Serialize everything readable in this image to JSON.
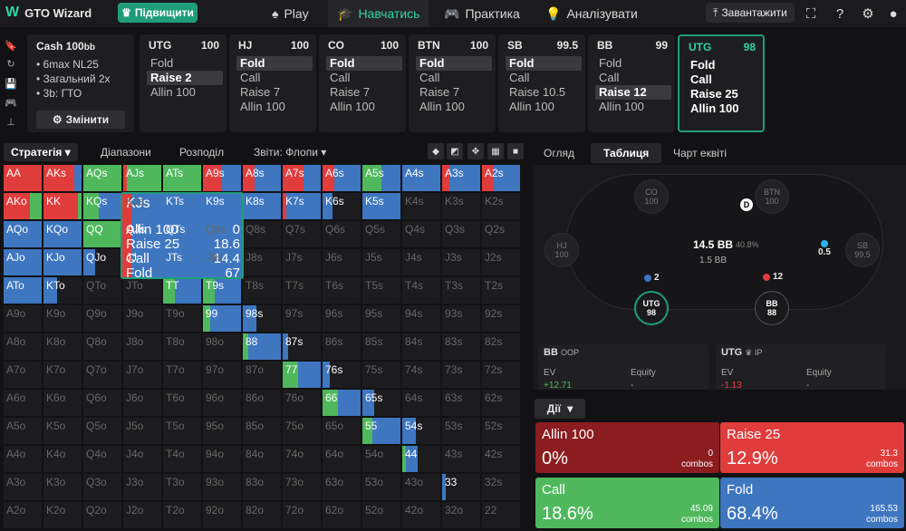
{
  "header": {
    "logo_mark": "W",
    "logo_text": "GTO Wizard",
    "upgrade_icon": "crown-icon",
    "upgrade_label": "Підвищити",
    "nav": [
      {
        "label": "Play",
        "icon": "spade-icon"
      },
      {
        "label": "Навчатись",
        "icon": "graduation-cap-icon"
      },
      {
        "label": "Практика",
        "icon": "gamepad-icon"
      },
      {
        "label": "Аналізувати",
        "icon": "bulb-icon"
      }
    ],
    "download_label": "Завантажити",
    "icons": [
      "screenshot-icon",
      "help-icon",
      "gear-icon",
      "user-icon"
    ]
  },
  "left_toolbar": [
    "bookmark-icon",
    "refresh-icon",
    "save-icon",
    "gamepad-icon",
    "range-icon"
  ],
  "cash": {
    "title": "Cash",
    "stack": "100",
    "stack_unit": "bb",
    "lines": [
      "6max NL25",
      "Загальний 2x",
      "3b: ГТО"
    ],
    "change_label": "Змінити"
  },
  "positions": [
    {
      "name": "UTG",
      "stack": "100",
      "options": [
        "Fold",
        "Raise 2",
        "Allin 100"
      ],
      "selected": 1
    },
    {
      "name": "HJ",
      "stack": "100",
      "options": [
        "Fold",
        "Call",
        "Raise 7",
        "Allin 100"
      ],
      "selected": 0
    },
    {
      "name": "CO",
      "stack": "100",
      "options": [
        "Fold",
        "Call",
        "Raise 7",
        "Allin 100"
      ],
      "selected": 0
    },
    {
      "name": "BTN",
      "stack": "100",
      "options": [
        "Fold",
        "Call",
        "Raise 7",
        "Allin 100"
      ],
      "selected": 0
    },
    {
      "name": "SB",
      "stack": "99.5",
      "options": [
        "Fold",
        "Call",
        "Raise 10.5",
        "Allin 100"
      ],
      "selected": 0
    },
    {
      "name": "BB",
      "stack": "99",
      "options": [
        "Fold",
        "Call",
        "Raise 12",
        "Allin 100"
      ],
      "selected": 2
    },
    {
      "name": "UTG",
      "stack": "98",
      "options": [
        "Fold",
        "Call",
        "Raise 25",
        "Allin 100"
      ],
      "selected": -1,
      "current": true
    }
  ],
  "left_tabs": {
    "strategy": "Стратегія",
    "ranges": "Діапазони",
    "distribution": "Розподіл",
    "reports": "Звіти: Флопи"
  },
  "right_tabs": [
    "Огляд",
    "Таблиця",
    "Чарт еквіті"
  ],
  "colors": {
    "allin": "#8b1c1f",
    "raise": "#e03c3c",
    "call": "#4fb85c",
    "fold": "#3e76c0",
    "accent": "#1f9d79"
  },
  "grid": {
    "ranks": [
      "A",
      "K",
      "Q",
      "J",
      "T",
      "9",
      "8",
      "7",
      "6",
      "5",
      "4",
      "3",
      "2"
    ],
    "cells": {
      "AA": [
        0,
        1,
        0,
        0
      ],
      "AKs": [
        0,
        0.8,
        0,
        0.2
      ],
      "AQs": [
        0,
        0,
        1,
        0
      ],
      "AJs": [
        0,
        0.1,
        0.9,
        0
      ],
      "ATs": [
        0,
        0,
        1,
        0
      ],
      "A9s": [
        0,
        0.5,
        0,
        0.5
      ],
      "A8s": [
        0,
        0.3,
        0,
        0.7
      ],
      "A7s": [
        0,
        0.55,
        0,
        0.45
      ],
      "A6s": [
        0,
        0.3,
        0,
        0.7
      ],
      "A5s": [
        0,
        0,
        0.5,
        0.5
      ],
      "A4s": [
        0,
        0,
        0,
        1
      ],
      "A3s": [
        0,
        0.2,
        0,
        0.8
      ],
      "A2s": [
        0,
        0.3,
        0,
        0.7
      ],
      "AKo": [
        0,
        0.7,
        0.3,
        0
      ],
      "KK": [
        0,
        0.9,
        0.1,
        0
      ],
      "KQs": [
        0,
        0,
        0.4,
        0.6
      ],
      "KTs": [
        0,
        0,
        0.2,
        0.8
      ],
      "K9s": [
        0,
        0,
        0,
        1
      ],
      "K8s": [
        0,
        0,
        0,
        1
      ],
      "K7s": [
        0,
        0.1,
        0,
        0.9
      ],
      "K6s": [
        0,
        0,
        0,
        0.25
      ],
      "K5s": [
        0,
        0,
        0,
        1
      ],
      "AQo": [
        0,
        0,
        0,
        1
      ],
      "KQo": [
        0,
        0,
        0,
        1
      ],
      "QQ": [
        0,
        0,
        1,
        0
      ],
      "QJs": [
        0,
        0,
        0.2,
        0.8
      ],
      "QTs": [
        0,
        0,
        0.3,
        0.7
      ],
      "AJo": [
        0,
        0,
        0,
        1
      ],
      "KJo": [
        0,
        0,
        0,
        1
      ],
      "QJo": [
        0,
        0,
        0,
        0.3
      ],
      "JJ": [
        0,
        0,
        0.9,
        0.1
      ],
      "JTs": [
        0,
        0,
        0.3,
        0.7
      ],
      "ATo": [
        0,
        0,
        0,
        1
      ],
      "KTo": [
        0,
        0,
        0,
        0.35
      ],
      "TT": [
        0,
        0,
        0.3,
        0.7
      ],
      "T9s": [
        0,
        0,
        0.3,
        0.7
      ],
      "99": [
        0,
        0,
        0.2,
        0.8
      ],
      "98s": [
        0,
        0,
        0,
        0.35
      ],
      "88": [
        0,
        0,
        0.15,
        0.85
      ],
      "87s": [
        0,
        0,
        0,
        0.15
      ],
      "77": [
        0,
        0,
        0.4,
        0.6
      ],
      "76s": [
        0,
        0,
        0,
        0.2
      ],
      "66": [
        0,
        0,
        0.4,
        0.6
      ],
      "65s": [
        0,
        0,
        0,
        0.3
      ],
      "55": [
        0,
        0,
        0.25,
        0.75
      ],
      "54s": [
        0,
        0,
        0,
        0.35
      ],
      "44": [
        0,
        0,
        0.1,
        0.3
      ],
      "33": [
        0,
        0,
        0,
        0.1
      ]
    },
    "dim_cells": [
      "AQo",
      "KQo",
      "AJo",
      "KJo",
      "QJo",
      "ATo",
      "KTo"
    ]
  },
  "tooltip": {
    "hand": "KJs",
    "rows": [
      {
        "label": "Allin 100",
        "value": "0"
      },
      {
        "label": "Raise 25",
        "value": "18.6"
      },
      {
        "label": "Call",
        "value": "14.4"
      },
      {
        "label": "Fold",
        "value": "67"
      }
    ]
  },
  "table": {
    "seats": [
      {
        "name": "CO",
        "stack": "100"
      },
      {
        "name": "BTN",
        "stack": "100"
      },
      {
        "name": "HJ",
        "stack": "100"
      },
      {
        "name": "SB",
        "stack": "99.5"
      },
      {
        "name": "UTG",
        "stack": "98"
      },
      {
        "name": "BB",
        "stack": "88"
      }
    ],
    "dealer": "D",
    "pot": "14.5 BB",
    "pot_pct": "40.8%",
    "pot_sub": "1.5 BB",
    "bet_utg": "2",
    "bet_bb": "12",
    "bet_sb": "0.5"
  },
  "equity": [
    {
      "player": "BB",
      "pos": "OOP",
      "ev_label": "EV",
      "ev": "+12.71",
      "eq_label": "Equity",
      "eq": "-",
      "ev_color": "#4fb85c"
    },
    {
      "player": "UTG",
      "pos": "IP",
      "ev_label": "EV",
      "ev": "-1.13",
      "eq_label": "Equity",
      "eq": "-",
      "ev_color": "#e03c3c"
    }
  ],
  "actions_tab": "Дії",
  "actions": [
    {
      "name": "Allin 100",
      "pct": "0%",
      "combos": "0",
      "unit": "combos",
      "color": "#8b1c1f"
    },
    {
      "name": "Raise 25",
      "pct": "12.9%",
      "combos": "31.3",
      "unit": "combos",
      "color": "#e03c3c"
    },
    {
      "name": "Call",
      "pct": "18.6%",
      "combos": "45.09",
      "unit": "combos",
      "color": "#4fb85c"
    },
    {
      "name": "Fold",
      "pct": "68.4%",
      "combos": "165.53",
      "unit": "combos",
      "color": "#3e76c0"
    }
  ]
}
